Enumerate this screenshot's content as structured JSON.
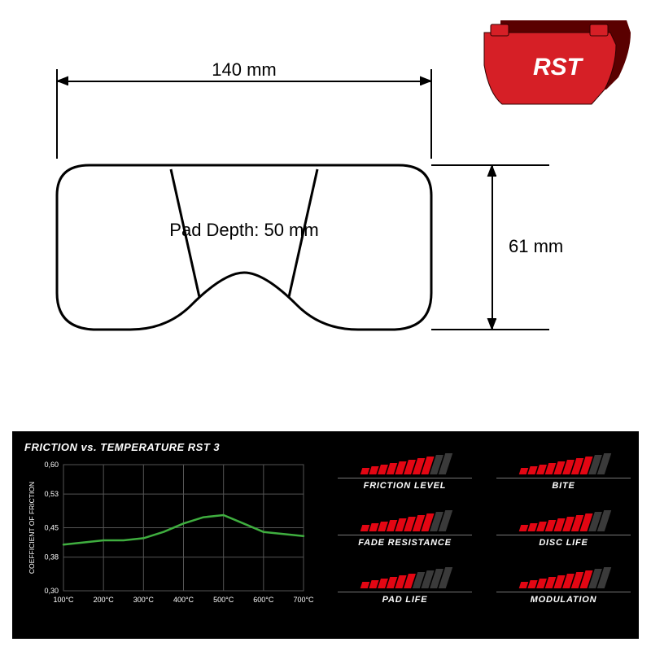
{
  "product_photo": {
    "brand_text": "RST",
    "pad_color": "#d61f26",
    "shadow_color": "#5a0000",
    "text_color": "#ffffff"
  },
  "drawing": {
    "width_label": "140 mm",
    "height_label": "61 mm",
    "depth_label": "Pad Depth: 50 mm",
    "label_fontsize": 22,
    "stroke_color": "#000000",
    "stroke_width": 2
  },
  "performance": {
    "panel_bg": "#000000",
    "chart": {
      "title": "FRICTION vs. TEMPERATURE RST 3",
      "y_axis_label": "COEFFICIENT OF FRICTION",
      "y_ticks": [
        "0,30",
        "0,38",
        "0,45",
        "0,53",
        "0,60"
      ],
      "x_ticks": [
        "100°C",
        "200°C",
        "300°C",
        "400°C",
        "500°C",
        "600°C",
        "700°C"
      ],
      "ylim": [
        0.3,
        0.6
      ],
      "xlim": [
        100,
        700
      ],
      "grid_color": "#555555",
      "line_color": "#3fae3f",
      "line_width": 2.5,
      "tick_fontsize": 9,
      "tick_color": "#ffffff",
      "data": [
        {
          "x": 100,
          "y": 0.41
        },
        {
          "x": 150,
          "y": 0.415
        },
        {
          "x": 200,
          "y": 0.42
        },
        {
          "x": 250,
          "y": 0.42
        },
        {
          "x": 300,
          "y": 0.425
        },
        {
          "x": 350,
          "y": 0.44
        },
        {
          "x": 400,
          "y": 0.46
        },
        {
          "x": 450,
          "y": 0.475
        },
        {
          "x": 500,
          "y": 0.48
        },
        {
          "x": 550,
          "y": 0.46
        },
        {
          "x": 600,
          "y": 0.44
        },
        {
          "x": 650,
          "y": 0.435
        },
        {
          "x": 700,
          "y": 0.43
        }
      ]
    },
    "gauges": {
      "max_segments": 10,
      "seg_base_height": 8,
      "seg_height_step": 2,
      "on_color": "#e30613",
      "off_color": "#3a3a3a",
      "items": [
        {
          "label": "FRICTION LEVEL",
          "value": 8
        },
        {
          "label": "BITE",
          "value": 8
        },
        {
          "label": "FADE RESISTANCE",
          "value": 8
        },
        {
          "label": "DISC LIFE",
          "value": 8
        },
        {
          "label": "PAD LIFE",
          "value": 6
        },
        {
          "label": "MODULATION",
          "value": 8
        }
      ]
    }
  }
}
